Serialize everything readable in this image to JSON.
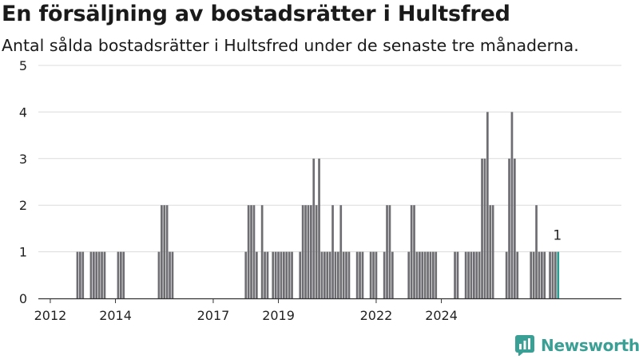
{
  "title": "En försäljning av bostadsrätter i Hultsfred",
  "subtitle": "Antal sålda bostadsrätter i Hultsfred under de senaste tre månaderna.",
  "brand": {
    "name": "Newsworthy",
    "icon": "newsworthy-logo-icon",
    "color": "#3a9f94"
  },
  "chart_data": {
    "type": "bar",
    "x_start": "2011-09",
    "interval": "month",
    "ylim": [
      0,
      5
    ],
    "y_ticks": [
      0,
      1,
      2,
      3,
      4,
      5
    ],
    "x_ticks": [
      {
        "date": "2012-01",
        "label": "2012"
      },
      {
        "date": "2014-01",
        "label": "2014"
      },
      {
        "date": "2017-01",
        "label": "2017"
      },
      {
        "date": "2019-01",
        "label": "2019"
      },
      {
        "date": "2022-01",
        "label": "2022"
      },
      {
        "date": "2024-01",
        "label": "2024"
      }
    ],
    "values": [
      0,
      0,
      0,
      0,
      0,
      0,
      0,
      0,
      0,
      0,
      0,
      0,
      0,
      0,
      1,
      1,
      1,
      0,
      0,
      1,
      1,
      1,
      1,
      1,
      1,
      0,
      0,
      0,
      0,
      1,
      1,
      1,
      0,
      0,
      0,
      0,
      0,
      0,
      0,
      0,
      0,
      0,
      0,
      0,
      1,
      2,
      2,
      2,
      1,
      1,
      0,
      0,
      0,
      0,
      0,
      0,
      0,
      0,
      0,
      0,
      0,
      0,
      0,
      0,
      0,
      0,
      0,
      0,
      0,
      0,
      0,
      0,
      0,
      0,
      0,
      0,
      1,
      2,
      2,
      2,
      1,
      0,
      2,
      1,
      1,
      0,
      1,
      1,
      1,
      1,
      1,
      1,
      1,
      1,
      0,
      0,
      1,
      2,
      2,
      2,
      2,
      3,
      2,
      3,
      1,
      1,
      1,
      1,
      2,
      1,
      1,
      2,
      1,
      1,
      1,
      0,
      0,
      1,
      1,
      1,
      0,
      0,
      1,
      1,
      1,
      0,
      0,
      1,
      2,
      2,
      1,
      0,
      0,
      0,
      0,
      0,
      1,
      2,
      2,
      1,
      1,
      1,
      1,
      1,
      1,
      1,
      1,
      0,
      0,
      0,
      0,
      0,
      0,
      1,
      1,
      0,
      0,
      1,
      1,
      1,
      1,
      1,
      1,
      3,
      3,
      4,
      2,
      2,
      0,
      0,
      0,
      0,
      1,
      3,
      4,
      3,
      1,
      0,
      0,
      0,
      0,
      1,
      1,
      2,
      1,
      1,
      1,
      0,
      1,
      1,
      1,
      1
    ],
    "highlight_color": "#2a9d93",
    "bar_color": "#6d6d72",
    "annotation": {
      "text": "1"
    }
  }
}
